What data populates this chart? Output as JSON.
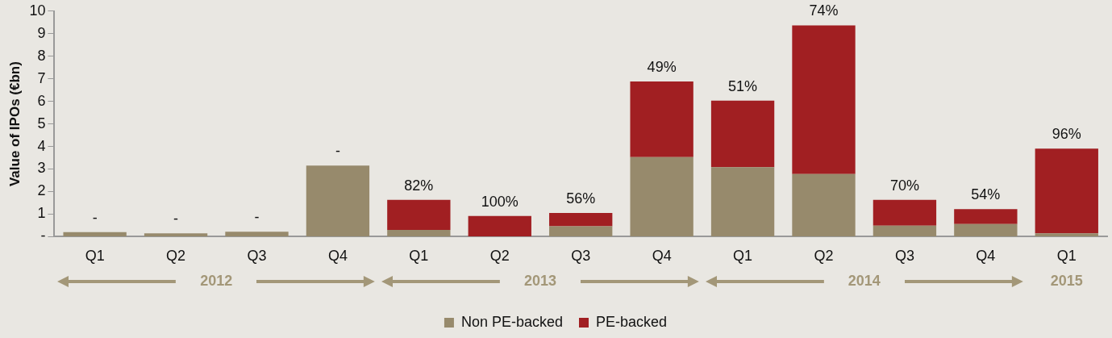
{
  "chart_data": {
    "type": "bar",
    "stacked": true,
    "ylabel": "Value of IPOs (€bn)",
    "categories": [
      "Q1",
      "Q2",
      "Q3",
      "Q4",
      "Q1",
      "Q2",
      "Q3",
      "Q4",
      "Q1",
      "Q2",
      "Q3",
      "Q4",
      "Q1"
    ],
    "series": [
      {
        "name": "Non PE-backed",
        "color": "#978a6c",
        "values": [
          0.2,
          0.15,
          0.22,
          3.15,
          0.3,
          0,
          0.46,
          3.53,
          3.08,
          2.78,
          0.49,
          0.56,
          0.15
        ]
      },
      {
        "name": "PE-backed",
        "color": "#a11f22",
        "values": [
          0,
          0,
          0,
          0,
          1.33,
          0.92,
          0.59,
          3.35,
          2.95,
          6.59,
          1.14,
          0.66,
          3.75
        ]
      }
    ],
    "ylim": [
      0,
      10
    ],
    "yticks": [
      {
        "value": 0,
        "label": "-"
      },
      1,
      2,
      3,
      4,
      5,
      6,
      7,
      8,
      9,
      10
    ],
    "annotations": [
      "-",
      "-",
      "-",
      "-",
      "82%",
      "100%",
      "56%",
      "49%",
      "51%",
      "74%",
      "70%",
      "54%",
      "96%",
      "2012",
      "2013",
      "2014",
      "2015"
    ],
    "grid": false,
    "legend": "bottom"
  }
}
